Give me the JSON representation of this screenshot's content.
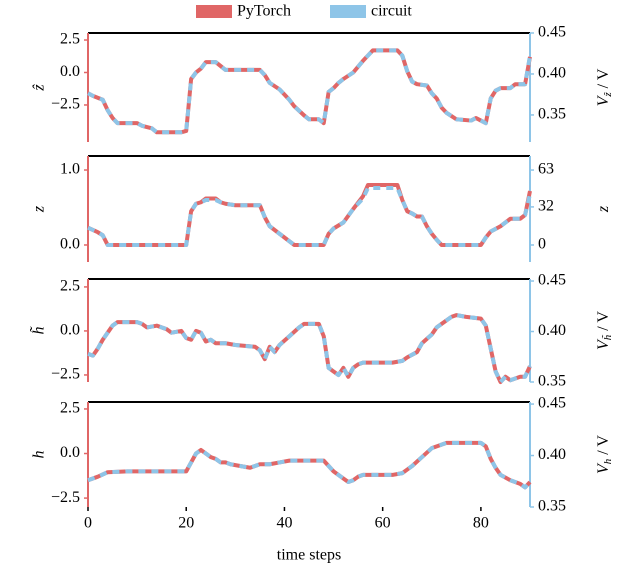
{
  "chart_data": [
    {
      "type": "line",
      "ylabel": "ẑ",
      "y2label": "V",
      "y2label_sub": "ẑ",
      "y2label_unit": "/ V",
      "xlim": [
        0,
        90
      ],
      "ylim": [
        -5.35,
        3.04
      ],
      "yticks": [
        2.5,
        {
          "value": 0,
          "label": "0.0"
        },
        {
          "value": -2.5,
          "label": "−2.5"
        }
      ],
      "y2lim": [
        0.317,
        0.45
      ],
      "y2ticks": [
        0.45,
        {
          "value": 0.4,
          "label": "0.40"
        },
        0.35
      ],
      "x": [
        0,
        1,
        3,
        4,
        5,
        6,
        10,
        11,
        13,
        14,
        19,
        20,
        21,
        22,
        23,
        24,
        26,
        27,
        28,
        35,
        36,
        37,
        39,
        41,
        42,
        44,
        45,
        47,
        48,
        49,
        50,
        51,
        52,
        54,
        56,
        58,
        63,
        64,
        65,
        66,
        67,
        69,
        70,
        71,
        72,
        73,
        75,
        78,
        79,
        80,
        81,
        82,
        83,
        84,
        86,
        87,
        89,
        90
      ],
      "series": [
        {
          "name": "PyTorch",
          "color": "#e06666",
          "values": [
            -1.6,
            -1.8,
            -2.1,
            -2.9,
            -3.5,
            -3.9,
            -3.9,
            -4.1,
            -4.3,
            -4.6,
            -4.6,
            -4.5,
            -0.5,
            0.0,
            0.3,
            0.8,
            0.8,
            0.5,
            0.2,
            0.2,
            -0.2,
            -0.8,
            -1.3,
            -2.1,
            -2.6,
            -3.3,
            -3.6,
            -3.6,
            -3.9,
            -1.5,
            -1.2,
            -0.8,
            -0.5,
            0.0,
            0.9,
            1.7,
            1.7,
            1.3,
            0.1,
            -0.7,
            -0.9,
            -1.0,
            -1.6,
            -2.0,
            -2.7,
            -3.1,
            -3.6,
            -3.7,
            -3.5,
            -3.7,
            -3.9,
            -2.0,
            -1.4,
            -1.2,
            -1.2,
            -0.9,
            -0.9,
            1.2
          ]
        },
        {
          "name": "circuit",
          "color": "#8ec5e8",
          "values": [
            -1.6,
            -1.8,
            -2.1,
            -2.9,
            -3.5,
            -3.9,
            -3.9,
            -4.1,
            -4.3,
            -4.6,
            -4.6,
            -4.5,
            -0.5,
            0.0,
            0.3,
            0.8,
            0.8,
            0.5,
            0.2,
            0.2,
            -0.2,
            -0.8,
            -1.3,
            -2.1,
            -2.6,
            -3.3,
            -3.6,
            -3.6,
            -3.9,
            -1.5,
            -1.2,
            -0.8,
            -0.5,
            0.0,
            0.9,
            1.7,
            1.7,
            1.3,
            0.1,
            -0.7,
            -0.9,
            -1.0,
            -1.6,
            -2.0,
            -2.7,
            -3.1,
            -3.6,
            -3.7,
            -3.5,
            -3.7,
            -3.9,
            -2.0,
            -1.4,
            -1.2,
            -1.2,
            -0.9,
            -0.9,
            1.3
          ]
        }
      ]
    },
    {
      "type": "line",
      "ylabel": "z",
      "y2label": "z",
      "xlim": [
        0,
        90
      ],
      "ylim": [
        -0.227,
        1.187
      ],
      "yticks": [
        {
          "value": 1,
          "label": "1.0"
        },
        {
          "value": 0,
          "label": "0.0"
        }
      ],
      "y2lim": [
        -14.3,
        74.8
      ],
      "y2ticks": [
        63,
        32,
        0
      ],
      "x": [
        0,
        2,
        3,
        4,
        20,
        21,
        22,
        23,
        24,
        26,
        27,
        28,
        30,
        35,
        36,
        37,
        39,
        41,
        42,
        48,
        49,
        50,
        52,
        54,
        56,
        57,
        63,
        64,
        65,
        66,
        67,
        68,
        69,
        70,
        71,
        72,
        80,
        81,
        82,
        84,
        86,
        88,
        89,
        90
      ],
      "series": [
        {
          "color": "#e06666",
          "values": [
            0.23,
            0.17,
            0.13,
            0,
            0,
            0.45,
            0.55,
            0.57,
            0.62,
            0.62,
            0.57,
            0.55,
            0.53,
            0.53,
            0.37,
            0.25,
            0.15,
            0.05,
            0,
            0,
            0.15,
            0.22,
            0.3,
            0.48,
            0.65,
            0.8,
            0.8,
            0.6,
            0.45,
            0.42,
            0.38,
            0.38,
            0.25,
            0.15,
            0.07,
            0,
            0,
            0.1,
            0.18,
            0.25,
            0.35,
            0.35,
            0.4,
            0.72
          ]
        },
        {
          "color": "#8ec5e8",
          "values": [
            0.23,
            0.17,
            0.13,
            0,
            0,
            0.45,
            0.55,
            0.57,
            0.6,
            0.6,
            0.57,
            0.55,
            0.53,
            0.53,
            0.37,
            0.25,
            0.15,
            0.05,
            0,
            0,
            0.15,
            0.22,
            0.3,
            0.48,
            0.62,
            0.76,
            0.76,
            0.6,
            0.45,
            0.42,
            0.38,
            0.38,
            0.25,
            0.15,
            0.07,
            0,
            0,
            0.1,
            0.18,
            0.25,
            0.35,
            0.35,
            0.4,
            0.68
          ]
        }
      ]
    },
    {
      "type": "line",
      "ylabel": "h̃",
      "y2label": "V",
      "y2label_sub": "h̃",
      "y2label_unit": "/ V",
      "xlim": [
        0,
        90
      ],
      "ylim": [
        -2.9,
        2.95
      ],
      "yticks": [
        2.5,
        {
          "value": 0,
          "label": "0.0"
        },
        {
          "value": -2.5,
          "label": "−2.5"
        }
      ],
      "y2lim": [
        0.35,
        0.452
      ],
      "y2ticks": [
        0.45,
        {
          "value": 0.4,
          "label": "0.40"
        },
        0.35
      ],
      "x": [
        0,
        1,
        2,
        3,
        4,
        5,
        6,
        10,
        11,
        12,
        14,
        16,
        17,
        19,
        20,
        21,
        22,
        23,
        24,
        25,
        26,
        28,
        30,
        34,
        35,
        36,
        37,
        38,
        39,
        41,
        43,
        44,
        47,
        48,
        49,
        50,
        51,
        52,
        53,
        54,
        55,
        56,
        62,
        64,
        65,
        67,
        68,
        70,
        71,
        72,
        73,
        74,
        75,
        77,
        80,
        81,
        82,
        83,
        84,
        85,
        86,
        88,
        89,
        90
      ],
      "series": [
        {
          "color": "#e06666",
          "values": [
            -1.3,
            -1.4,
            -1.0,
            -0.5,
            -0.1,
            0.3,
            0.5,
            0.5,
            0.4,
            0.2,
            0.3,
            0.1,
            -0.1,
            0.0,
            -0.4,
            -0.5,
            0.0,
            -0.1,
            -0.6,
            -0.5,
            -0.7,
            -0.7,
            -0.8,
            -0.9,
            -1.1,
            -1.6,
            -0.9,
            -1.2,
            -0.8,
            -0.3,
            0.2,
            0.4,
            0.4,
            -0.3,
            -2.1,
            -2.3,
            -2.5,
            -2.1,
            -2.6,
            -2.1,
            -1.9,
            -1.8,
            -1.8,
            -1.7,
            -1.5,
            -1.2,
            -0.7,
            -0.2,
            0.2,
            0.4,
            0.6,
            0.8,
            0.9,
            0.8,
            0.7,
            0.3,
            -1.0,
            -2.3,
            -2.9,
            -2.6,
            -2.8,
            -2.6,
            -2.6,
            -2.0
          ]
        },
        {
          "color": "#8ec5e8",
          "values": [
            -1.3,
            -1.4,
            -1.0,
            -0.5,
            -0.1,
            0.3,
            0.5,
            0.5,
            0.4,
            0.2,
            0.3,
            0.1,
            -0.1,
            0.0,
            -0.4,
            -0.5,
            0.0,
            -0.1,
            -0.6,
            -0.5,
            -0.7,
            -0.7,
            -0.8,
            -0.9,
            -1.1,
            -1.6,
            -0.9,
            -1.2,
            -0.8,
            -0.3,
            0.2,
            0.4,
            0.4,
            -0.3,
            -2.1,
            -2.3,
            -2.5,
            -2.1,
            -2.6,
            -2.1,
            -1.9,
            -1.8,
            -1.8,
            -1.7,
            -1.5,
            -1.2,
            -0.7,
            -0.2,
            0.2,
            0.4,
            0.6,
            0.8,
            0.9,
            0.8,
            0.7,
            0.3,
            -1.0,
            -2.3,
            -2.9,
            -2.6,
            -2.8,
            -2.6,
            -2.6,
            -2.0
          ]
        }
      ]
    },
    {
      "type": "line",
      "ylabel": "h",
      "y2label": "V",
      "y2label_sub": "h",
      "y2label_unit": "/ V",
      "xlabel": "time steps",
      "xlim": [
        0,
        90
      ],
      "xticks": [
        0,
        20,
        40,
        60,
        80
      ],
      "ylim": [
        -3.0,
        2.89
      ],
      "yticks": [
        2.5,
        {
          "value": 0,
          "label": "0.0"
        },
        {
          "value": -2.5,
          "label": "−2.5"
        }
      ],
      "y2lim": [
        0.35,
        0.452
      ],
      "y2ticks": [
        0.45,
        {
          "value": 0.4,
          "label": "0.40"
        },
        0.35
      ],
      "x": [
        0,
        2,
        4,
        8,
        12,
        20,
        21,
        22,
        23,
        24,
        25,
        26,
        27,
        28,
        29,
        31,
        33,
        35,
        37,
        39,
        41,
        43,
        48,
        49,
        50,
        52,
        53,
        54,
        55,
        56,
        62,
        64,
        65,
        66,
        68,
        70,
        72,
        73,
        80,
        81,
        82,
        83,
        84,
        86,
        88,
        89,
        90
      ],
      "series": [
        {
          "color": "#e06666",
          "values": [
            -1.5,
            -1.3,
            -1.05,
            -1.0,
            -1.0,
            -1.0,
            -0.5,
            0.0,
            0.2,
            0.0,
            -0.2,
            -0.3,
            -0.5,
            -0.5,
            -0.6,
            -0.7,
            -0.8,
            -0.6,
            -0.6,
            -0.5,
            -0.4,
            -0.4,
            -0.4,
            -0.7,
            -1.0,
            -1.4,
            -1.6,
            -1.5,
            -1.3,
            -1.2,
            -1.2,
            -1.1,
            -0.9,
            -0.7,
            -0.2,
            0.3,
            0.5,
            0.6,
            0.6,
            0.4,
            -0.3,
            -0.8,
            -1.2,
            -1.5,
            -1.7,
            -1.9,
            -1.6
          ]
        },
        {
          "color": "#8ec5e8",
          "values": [
            -1.5,
            -1.3,
            -1.05,
            -1.0,
            -1.0,
            -1.0,
            -0.5,
            0.0,
            0.2,
            0.0,
            -0.2,
            -0.3,
            -0.5,
            -0.5,
            -0.6,
            -0.7,
            -0.8,
            -0.6,
            -0.6,
            -0.5,
            -0.4,
            -0.4,
            -0.4,
            -0.7,
            -1.0,
            -1.4,
            -1.6,
            -1.5,
            -1.3,
            -1.2,
            -1.2,
            -1.1,
            -0.9,
            -0.7,
            -0.2,
            0.3,
            0.5,
            0.6,
            0.6,
            0.4,
            -0.3,
            -0.8,
            -1.2,
            -1.5,
            -1.7,
            -1.9,
            -1.6
          ]
        }
      ]
    }
  ]
}
